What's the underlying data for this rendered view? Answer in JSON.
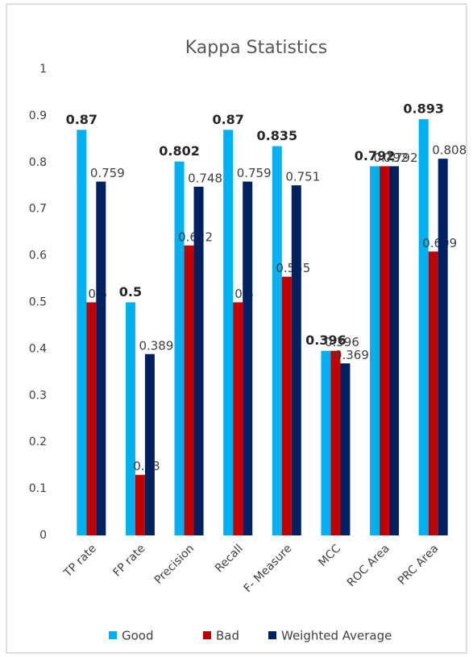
{
  "chart_data": {
    "type": "bar",
    "title": "Kappa Statistics",
    "categories": [
      "TP rate",
      "FP rate",
      "Precision",
      "Recall",
      "F- Measure",
      "MCC",
      "ROC Area",
      "PRC Area"
    ],
    "series": [
      {
        "name": "Good",
        "color": "#00b0f0",
        "values": [
          0.87,
          0.5,
          0.802,
          0.87,
          0.835,
          0.396,
          0.792,
          0.893
        ]
      },
      {
        "name": "Bad",
        "color": "#c00000",
        "values": [
          0.5,
          0.13,
          0.622,
          0.5,
          0.555,
          0.396,
          0.792,
          0.609
        ]
      },
      {
        "name": "Weighted Average",
        "color": "#002060",
        "values": [
          0.759,
          0.389,
          0.748,
          0.759,
          0.751,
          0.369,
          0.792,
          0.808
        ]
      }
    ],
    "ylim": [
      0,
      1
    ],
    "yticks": [
      0,
      0.1,
      0.2,
      0.3,
      0.4,
      0.5,
      0.6,
      0.7,
      0.8,
      0.9,
      1
    ],
    "grid": false,
    "legend": "bottom"
  }
}
